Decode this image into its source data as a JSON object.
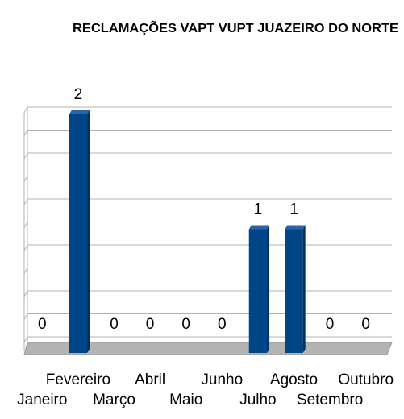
{
  "chart_data": {
    "type": "bar",
    "title": "RECLAMAÇÕES VAPT VUPT JUAZEIRO DO NORTE",
    "categories": [
      "Janeiro",
      "Fevereiro",
      "Março",
      "Abril",
      "Maio",
      "Junho",
      "Julho",
      "Agosto",
      "Setembro",
      "Outubro"
    ],
    "values": [
      0,
      2,
      0,
      0,
      0,
      0,
      1,
      1,
      0,
      0
    ],
    "color": "#004586",
    "ylim": [
      0,
      2
    ],
    "yticks": [
      0,
      0.2,
      0.4,
      0.6,
      0.8,
      1,
      1.2,
      1.4,
      1.6,
      1.8,
      2
    ],
    "grid": true
  }
}
